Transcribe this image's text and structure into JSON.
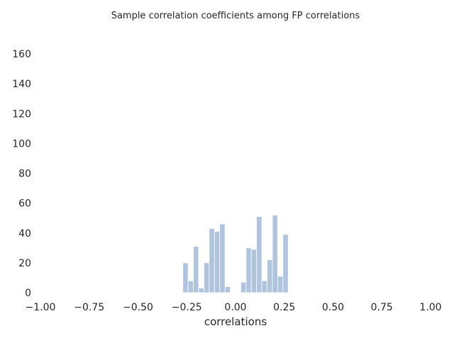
{
  "chart_data": {
    "type": "bar",
    "title": "Sample correlation coefficients among FP correlations",
    "xlabel": "correlations",
    "ylabel": "",
    "xlim": [
      -1.0,
      1.0
    ],
    "ylim": [
      0,
      170
    ],
    "xticks": [
      "−1.00",
      "−0.75",
      "−0.50",
      "−0.25",
      "0.00",
      "0.25",
      "0.50",
      "0.75",
      "1.00"
    ],
    "yticks": [
      "0",
      "20",
      "40",
      "60",
      "80",
      "100",
      "120",
      "140",
      "160"
    ],
    "grid": false,
    "bar_color": "#b0c4de",
    "bins": [
      {
        "left": -0.27,
        "right": -0.243,
        "value": 20
      },
      {
        "left": -0.243,
        "right": -0.216,
        "value": 8
      },
      {
        "left": -0.216,
        "right": -0.189,
        "value": 31
      },
      {
        "left": -0.189,
        "right": -0.162,
        "value": 3
      },
      {
        "left": -0.162,
        "right": -0.135,
        "value": 20
      },
      {
        "left": -0.135,
        "right": -0.108,
        "value": 43
      },
      {
        "left": -0.108,
        "right": -0.081,
        "value": 41
      },
      {
        "left": -0.081,
        "right": -0.054,
        "value": 46
      },
      {
        "left": -0.054,
        "right": -0.027,
        "value": 4
      },
      {
        "left": -0.027,
        "right": 0.0,
        "value": 0
      },
      {
        "left": 0.0,
        "right": 0.027,
        "value": 0
      },
      {
        "left": 0.027,
        "right": 0.054,
        "value": 7
      },
      {
        "left": 0.054,
        "right": 0.081,
        "value": 30
      },
      {
        "left": 0.081,
        "right": 0.108,
        "value": 29
      },
      {
        "left": 0.108,
        "right": 0.135,
        "value": 51
      },
      {
        "left": 0.135,
        "right": 0.162,
        "value": 8
      },
      {
        "left": 0.162,
        "right": 0.189,
        "value": 22
      },
      {
        "left": 0.189,
        "right": 0.216,
        "value": 52
      },
      {
        "left": 0.216,
        "right": 0.243,
        "value": 11
      },
      {
        "left": 0.243,
        "right": 0.27,
        "value": 39
      }
    ]
  }
}
